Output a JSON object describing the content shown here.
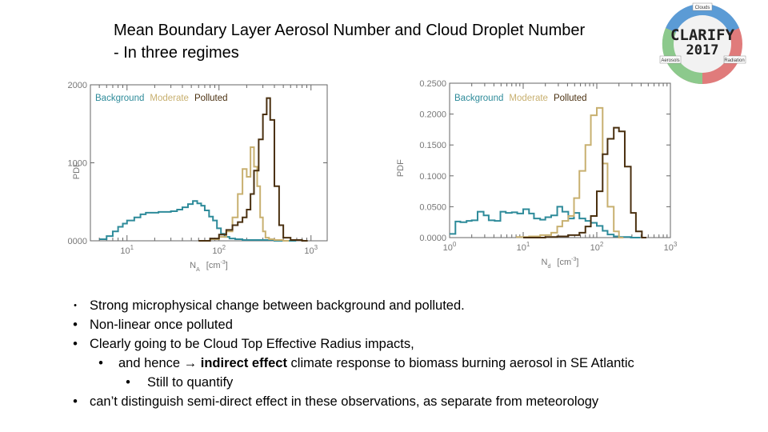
{
  "title": {
    "line1": "Mean Boundary Layer Aerosol Number and Cloud Droplet Number",
    "line2": "- In three regimes"
  },
  "logo": {
    "text_main": "CLARIFY",
    "text_year": "2017",
    "segment_top": "Clouds",
    "segment_left": "Aerosols",
    "segment_right": "Radiation",
    "colors": [
      "#4a90d9",
      "#7fc47f",
      "#e07b7b",
      "#d9d9d9"
    ]
  },
  "chart_data": [
    {
      "type": "line",
      "title": "",
      "xlabel": "N_A [cm^-3]",
      "xlabel_main": "N",
      "xlabel_sub": "A",
      "xlabel_unit": "[cm",
      "xlabel_unit_exp": "-3",
      "xlabel_unit_close": "]",
      "ylabel": "PDF",
      "xscale": "log",
      "xlim": [
        4,
        1500
      ],
      "ylim": [
        0,
        0.2
      ],
      "yticks": [
        "0.0000",
        "0.1000",
        "0.2000"
      ],
      "ytick_values": [
        0,
        0.1,
        0.2
      ],
      "xticks": [
        {
          "base": "10",
          "exp": "1",
          "value": 10
        },
        {
          "base": "10",
          "exp": "2",
          "value": 100
        },
        {
          "base": "10",
          "exp": "3",
          "value": 1000
        }
      ],
      "legend": [
        "Background",
        "Moderate",
        "Polluted"
      ],
      "legend_position": "top-left",
      "series": [
        {
          "name": "Background",
          "color": "#2e8b9a",
          "x": [
            5,
            6,
            7,
            8,
            9,
            10,
            12,
            14,
            16,
            19,
            22,
            26,
            30,
            35,
            40,
            46,
            52,
            58,
            64,
            70,
            78,
            86,
            95,
            105,
            115,
            130,
            150,
            180,
            220,
            300,
            400,
            600
          ],
          "y": [
            0.002,
            0.006,
            0.012,
            0.018,
            0.022,
            0.026,
            0.03,
            0.034,
            0.036,
            0.036,
            0.037,
            0.037,
            0.038,
            0.04,
            0.043,
            0.047,
            0.051,
            0.048,
            0.045,
            0.039,
            0.031,
            0.026,
            0.016,
            0.009,
            0.005,
            0.003,
            0.002,
            0.001,
            0.001,
            0.001,
            0.0,
            0.0
          ]
        },
        {
          "name": "Moderate",
          "color": "#c8b070",
          "x": [
            80,
            100,
            120,
            140,
            160,
            180,
            200,
            220,
            240,
            260,
            280,
            300,
            320,
            350,
            400,
            500
          ],
          "y": [
            0.002,
            0.005,
            0.012,
            0.03,
            0.06,
            0.092,
            0.082,
            0.12,
            0.095,
            0.07,
            0.03,
            0.012,
            0.004,
            0.002,
            0.001,
            0.0
          ]
        },
        {
          "name": "Polluted",
          "color": "#4a3010",
          "x": [
            60,
            80,
            100,
            120,
            140,
            160,
            180,
            200,
            220,
            240,
            270,
            300,
            330,
            360,
            400,
            450,
            500,
            600,
            800
          ],
          "y": [
            0.0,
            0.003,
            0.008,
            0.014,
            0.02,
            0.024,
            0.03,
            0.04,
            0.06,
            0.09,
            0.13,
            0.162,
            0.183,
            0.155,
            0.07,
            0.02,
            0.004,
            0.001,
            0.0
          ]
        }
      ]
    },
    {
      "type": "line",
      "title": "",
      "xlabel": "N_d [cm^-3]",
      "xlabel_main": "N",
      "xlabel_sub": "d",
      "xlabel_unit": "[cm",
      "xlabel_unit_exp": "-3",
      "xlabel_unit_close": "]",
      "ylabel": "PDF",
      "xscale": "log",
      "xlim": [
        1,
        1000
      ],
      "ylim": [
        0,
        0.25
      ],
      "yticks": [
        "0.0000",
        "0.0500",
        "0.1000",
        "0.1500",
        "0.2000",
        "0.2500"
      ],
      "ytick_values": [
        0,
        0.05,
        0.1,
        0.15,
        0.2,
        0.25
      ],
      "xticks": [
        {
          "base": "10",
          "exp": "0",
          "value": 1
        },
        {
          "base": "10",
          "exp": "1",
          "value": 10
        },
        {
          "base": "10",
          "exp": "2",
          "value": 100
        },
        {
          "base": "10",
          "exp": "3",
          "value": 1000
        }
      ],
      "legend": [
        "Background",
        "Moderate",
        "Polluted"
      ],
      "legend_position": "top-left",
      "series": [
        {
          "name": "Background",
          "color": "#2e8b9a",
          "x": [
            1.0,
            1.2,
            1.4,
            1.7,
            2.0,
            2.4,
            2.9,
            3.4,
            4.1,
            4.9,
            5.8,
            7.0,
            8.3,
            10,
            12,
            14,
            17,
            20,
            24,
            29,
            34,
            41,
            49,
            58,
            70,
            83,
            100,
            120,
            140,
            170,
            200,
            240,
            290,
            340
          ],
          "y": [
            0.006,
            0.026,
            0.025,
            0.027,
            0.028,
            0.042,
            0.036,
            0.028,
            0.027,
            0.042,
            0.04,
            0.041,
            0.039,
            0.046,
            0.039,
            0.031,
            0.029,
            0.033,
            0.036,
            0.05,
            0.042,
            0.031,
            0.04,
            0.031,
            0.027,
            0.024,
            0.019,
            0.011,
            0.005,
            0.002,
            0.001,
            0.001,
            0.0,
            0.0
          ]
        },
        {
          "name": "Moderate",
          "color": "#c8b070",
          "x": [
            8,
            12,
            17,
            24,
            29,
            34,
            41,
            49,
            58,
            70,
            83,
            100,
            120,
            140,
            170,
            200
          ],
          "y": [
            0.001,
            0.002,
            0.004,
            0.008,
            0.018,
            0.027,
            0.035,
            0.064,
            0.108,
            0.15,
            0.198,
            0.21,
            0.12,
            0.05,
            0.01,
            0.0
          ]
        },
        {
          "name": "Polluted",
          "color": "#4a3010",
          "x": [
            10,
            20,
            29,
            41,
            58,
            70,
            83,
            100,
            120,
            140,
            170,
            200,
            240,
            290,
            340,
            410
          ],
          "y": [
            0.0,
            0.001,
            0.002,
            0.004,
            0.008,
            0.018,
            0.035,
            0.075,
            0.135,
            0.16,
            0.178,
            0.172,
            0.115,
            0.04,
            0.01,
            0.0
          ]
        }
      ]
    }
  ],
  "bullets": [
    {
      "level": 0,
      "text": "Strong microphysical change between background and polluted."
    },
    {
      "level": 0,
      "text": "Non-linear once polluted"
    },
    {
      "level": 0,
      "text": "Clearly going to be Cloud Top Effective Radius impacts,"
    },
    {
      "level": 1,
      "pre": "and hence ",
      "arrow": "→",
      "bold": "indirect effect",
      "post": " climate response to biomass burning aerosol in SE Atlantic"
    },
    {
      "level": 2,
      "text": "Still to quantify"
    },
    {
      "level": 0,
      "text": "can’t distinguish semi-direct effect in these observations, as separate from meteorology"
    }
  ],
  "bullet_char": "•"
}
